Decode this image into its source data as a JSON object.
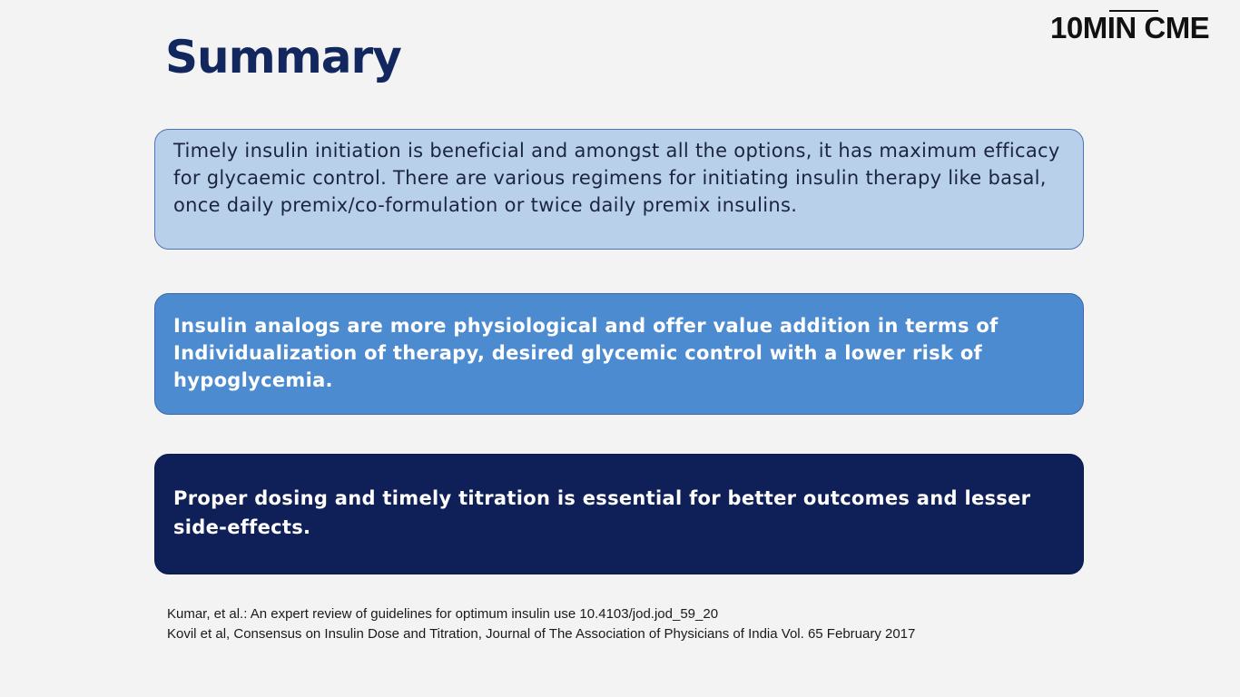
{
  "logo": {
    "text": "10MIN CME"
  },
  "slide": {
    "title": "Summary",
    "boxes": [
      {
        "text": "Timely insulin initiation is beneficial and amongst all the options, it has maximum efficacy for glycaemic control. There are various regimens for initiating insulin therapy like basal, once daily premix/co-formulation or twice daily premix insulins.",
        "color": "#b8d0ea"
      },
      {
        "text": "Insulin analogs are more physiological and offer value addition in terms of Individualization of therapy, desired glycemic control with a lower risk of hypoglycemia.",
        "color": "#4d8bd0"
      },
      {
        "text": "Proper dosing and timely titration is essential for better outcomes and lesser side-effects.",
        "color": "#0f1f57"
      }
    ],
    "references": [
      "Kumar, et al.: An expert review of guidelines for optimum insulin use 10.4103/jod.jod_59_20",
      "Kovil et al, Consensus on Insulin Dose and Titration, Journal of The Association of Physicians of India Vol. 65 February 2017"
    ]
  }
}
